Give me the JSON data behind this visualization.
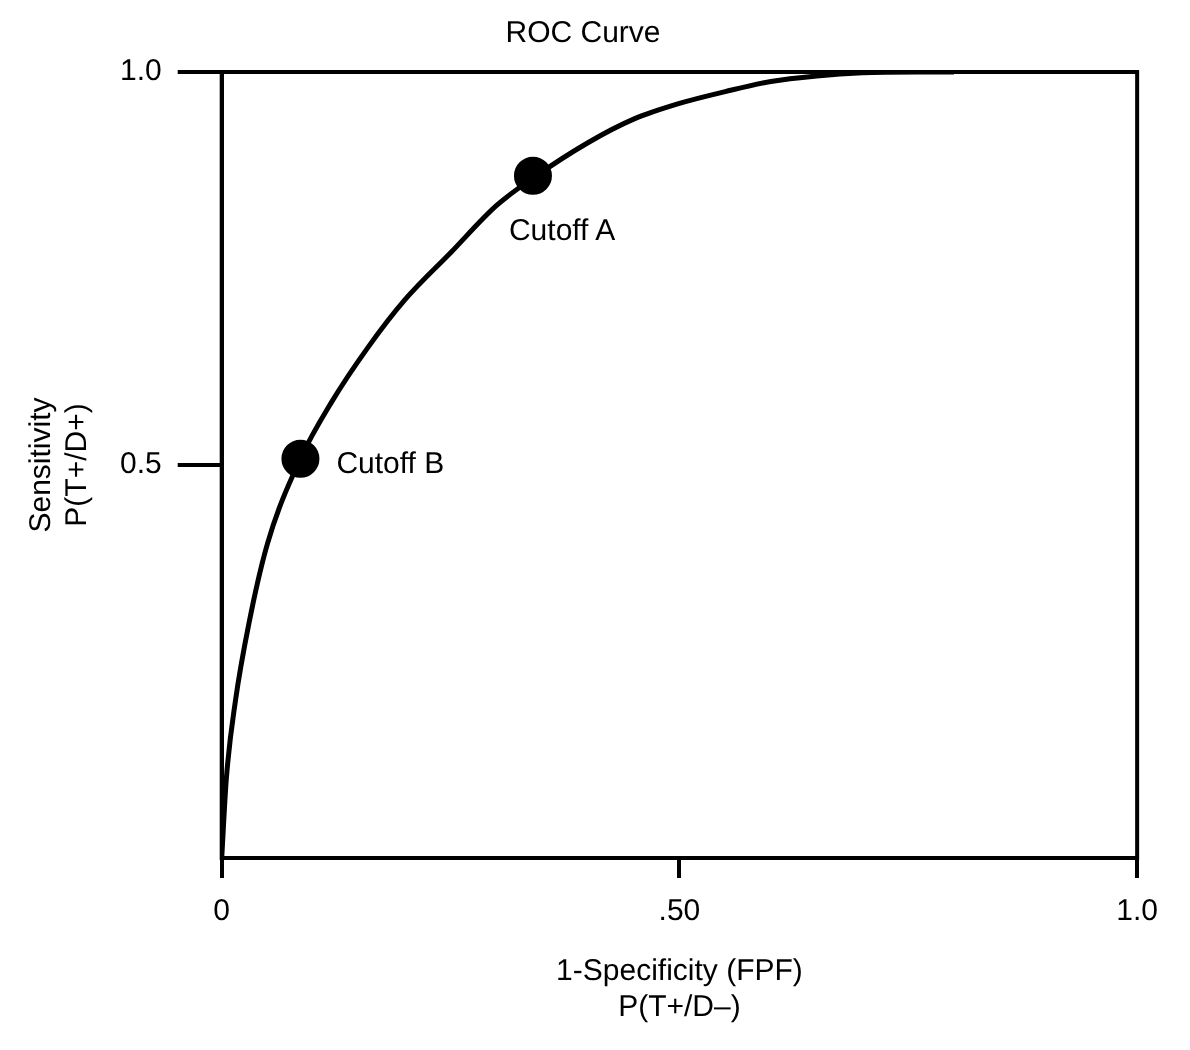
{
  "chart_data": {
    "type": "line",
    "title": "ROC Curve",
    "xlabel": "1-Specificity (FPF)\nP(T+/D–)",
    "ylabel": "Sensitivity\nP(T+/D+)",
    "xlim": [
      0,
      1
    ],
    "ylim": [
      0,
      1
    ],
    "xticks": [
      0,
      {
        "value": 0.5,
        "label": ".50"
      },
      {
        "value": 1,
        "label": "1.0"
      }
    ],
    "yticks": [
      {
        "value": 0.5,
        "label": "0.5"
      },
      {
        "value": 1,
        "label": "1.0"
      }
    ],
    "grid": false,
    "legend": false,
    "line_style": "solid",
    "series": [
      {
        "color": "#000000",
        "x": [
          0,
          0.005,
          0.015,
          0.03,
          0.05,
          0.086,
          0.12,
          0.16,
          0.2,
          0.25,
          0.3,
          0.34,
          0.4,
          0.45,
          0.5,
          0.55,
          0.6,
          0.65,
          0.7,
          0.76,
          0.8
        ],
        "values": [
          0,
          0.1,
          0.2,
          0.3,
          0.4,
          0.508,
          0.58,
          0.65,
          0.71,
          0.77,
          0.83,
          0.865,
          0.91,
          0.94,
          0.96,
          0.975,
          0.988,
          0.995,
          0.999,
          1,
          1
        ]
      },
      {
        "type": "scatter",
        "color": "#000000",
        "marker": "circle",
        "x": [
          0.34,
          0.086
        ],
        "values": [
          0.868,
          0.508
        ]
      }
    ],
    "annotations": [
      {
        "text": "Cutoff A",
        "x": 0.34,
        "y": 0.868
      },
      {
        "text": "Cutoff B",
        "x": 0.086,
        "y": 0.508
      }
    ]
  }
}
